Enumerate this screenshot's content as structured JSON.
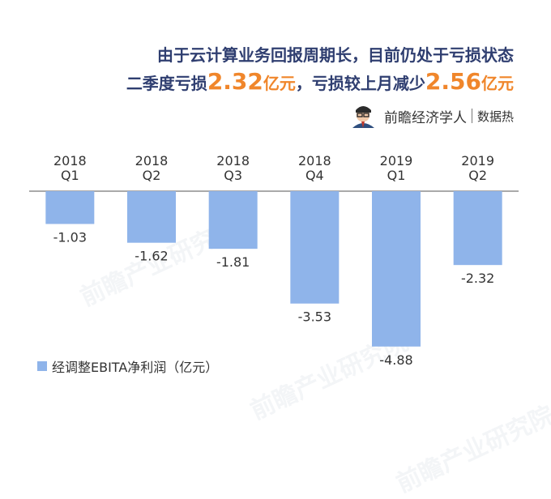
{
  "header": {
    "line1": "由于云计算业务回报周期长，目前仍处于亏损状态",
    "line2_prefix": "二季度亏损",
    "loss_q2_value": "2.32",
    "unit1": "亿元",
    "line2_mid": "，亏损较上月减少",
    "decrease_value": "2.56",
    "unit2": "亿元"
  },
  "brand": {
    "name": "前瞻经济学人",
    "sub": "数据热"
  },
  "watermark": {
    "text": "前瞻产业研究院"
  },
  "colors": {
    "bar": "#8fb4ea",
    "accent": "#f0862b",
    "title": "#2f3e70",
    "axis": "#555555",
    "label": "#333333"
  },
  "chart_data": {
    "type": "bar",
    "categories": [
      [
        "2018",
        "Q1"
      ],
      [
        "2018",
        "Q2"
      ],
      [
        "2018",
        "Q3"
      ],
      [
        "2018",
        "Q4"
      ],
      [
        "2019",
        "Q1"
      ],
      [
        "2019",
        "Q2"
      ]
    ],
    "series": [
      {
        "name": "经调整EBITA净利润（亿元）",
        "values": [
          -1.03,
          -1.62,
          -1.81,
          -3.53,
          -4.88,
          -2.32
        ]
      }
    ],
    "value_labels": [
      "-1.03",
      "-1.62",
      "-1.81",
      "-3.53",
      "-4.88",
      "-2.32"
    ],
    "ylim": [
      -5,
      0
    ],
    "grid": false,
    "legend": "bottom-left",
    "title": "",
    "xlabel": "",
    "ylabel": ""
  }
}
